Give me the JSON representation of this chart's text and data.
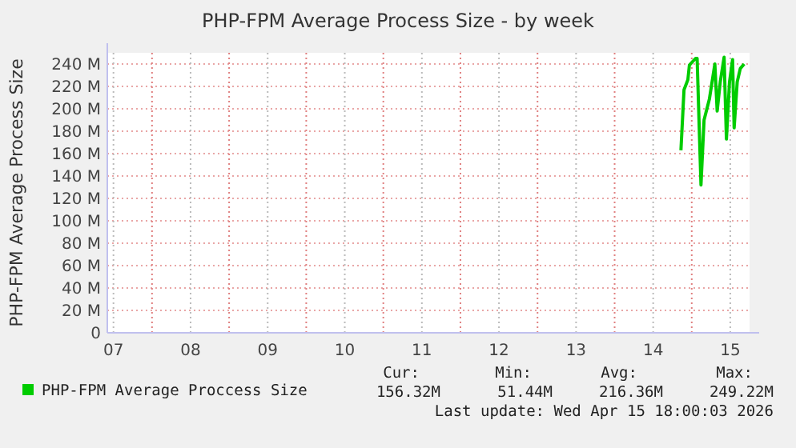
{
  "chart_data": {
    "type": "line",
    "title": "PHP-FPM Average Process Size - by week",
    "ylabel": "PHP-FPM Average Process Size",
    "xlim": [
      7.42,
      15.75
    ],
    "ylim": [
      0,
      250
    ],
    "xticks": [
      {
        "value": 7.5,
        "label": "07"
      },
      {
        "value": 8,
        "label": null
      },
      {
        "value": 8.5,
        "label": "08"
      },
      {
        "value": 9,
        "label": null
      },
      {
        "value": 9.5,
        "label": "09"
      },
      {
        "value": 10,
        "label": null
      },
      {
        "value": 10.5,
        "label": "10"
      },
      {
        "value": 11,
        "label": null
      },
      {
        "value": 11.5,
        "label": "11"
      },
      {
        "value": 12,
        "label": null
      },
      {
        "value": 12.5,
        "label": "12"
      },
      {
        "value": 13,
        "label": null
      },
      {
        "value": 13.5,
        "label": "13"
      },
      {
        "value": 14,
        "label": null
      },
      {
        "value": 14.5,
        "label": "14"
      },
      {
        "value": 15,
        "label": null
      },
      {
        "value": 15.5,
        "label": "15"
      }
    ],
    "yticks": [
      {
        "value": 0,
        "label": "0"
      },
      {
        "value": 20,
        "label": "20 M"
      },
      {
        "value": 40,
        "label": "40 M"
      },
      {
        "value": 60,
        "label": "60 M"
      },
      {
        "value": 80,
        "label": "80 M"
      },
      {
        "value": 100,
        "label": "100 M"
      },
      {
        "value": 120,
        "label": "120 M"
      },
      {
        "value": 140,
        "label": "140 M"
      },
      {
        "value": 160,
        "label": "160 M"
      },
      {
        "value": 180,
        "label": "180 M"
      },
      {
        "value": 200,
        "label": "200 M"
      },
      {
        "value": 220,
        "label": "220 M"
      },
      {
        "value": 240,
        "label": "240 M"
      }
    ],
    "grid": true,
    "legend": "bottom",
    "marker": "none",
    "line_style": "solid",
    "x": [
      14.86,
      14.9,
      14.95,
      14.97,
      15.05,
      15.07,
      15.12,
      15.16,
      15.23,
      15.3,
      15.33,
      15.37,
      15.42,
      15.45,
      15.49,
      15.53,
      15.55,
      15.59,
      15.63,
      15.68
    ],
    "series": [
      {
        "name": "PHP-FPM Average Proccess Size",
        "color": "#00cc00",
        "values": [
          163,
          217,
          226,
          239,
          245,
          245,
          132,
          190,
          209,
          240,
          198,
          224,
          246,
          173,
          224,
          244,
          183,
          224,
          236,
          240
        ]
      }
    ],
    "annotations": [
      "Cur:",
      "Min:",
      "Avg:",
      "Max:",
      "156.32M",
      "51.44M",
      "216.36M",
      "249.22M",
      "Last update: Wed Apr 15 18:00:03 2026"
    ]
  }
}
